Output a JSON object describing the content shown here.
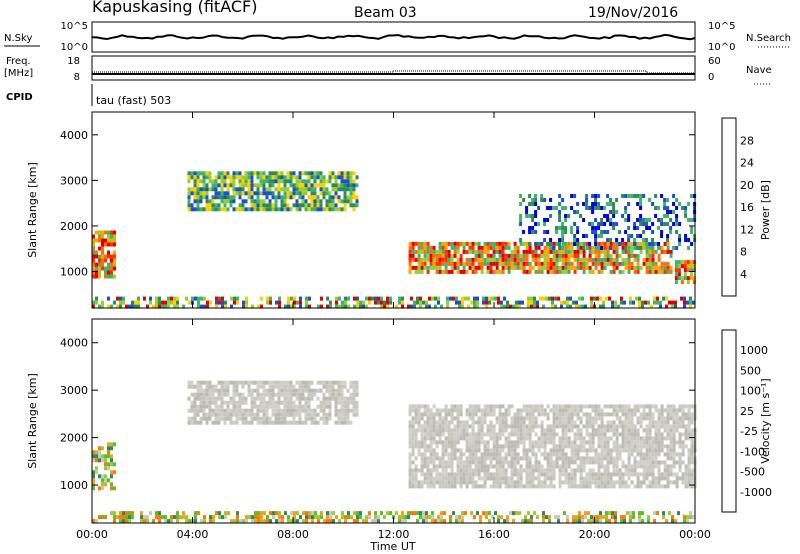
{
  "header": {
    "station": "Kapuskasing (fitACF)",
    "beam": "Beam 03",
    "date": "19/Nov/2016"
  },
  "top_panels": {
    "nsky_label": "N.Sky",
    "nsearch_label": "N.Search",
    "nsky_ticks": [
      "10^5",
      "10^0"
    ],
    "nsearch_ticks": [
      "10^5",
      "10^0"
    ],
    "freq_label_line1": "Freq.",
    "freq_label_line2": "[MHz]",
    "freq_ticks": [
      "18",
      "8"
    ],
    "nave_label": "Nave",
    "nave_ticks": [
      "60",
      "0"
    ],
    "cpid_label": "CPID",
    "cpid_text": "tau (fast) 503"
  },
  "chart_data": [
    {
      "type": "heatmap",
      "panel": "power",
      "ylabel": "Slant Range [km]",
      "xlabel": "",
      "ylim": [
        200,
        4500
      ],
      "yticks": [
        1000,
        2000,
        3000,
        4000
      ],
      "xlim": [
        0,
        24
      ],
      "colorbar_label": "Power [dB]",
      "colorbar_ticks": [
        "28",
        "24",
        "20",
        "16",
        "12",
        "8",
        "4"
      ],
      "colorbar_colors": [
        "#0000e0",
        "#1e50c8",
        "#2e8b57",
        "#3cb371",
        "#9acd32",
        "#ffd000",
        "#ffa500",
        "#ff7000",
        "#ff3000",
        "#e00000"
      ],
      "regions": [
        {
          "t_start": 0.0,
          "t_end": 0.9,
          "r_start": 900,
          "r_end": 1900,
          "level": "high"
        },
        {
          "t_start": 3.8,
          "t_end": 10.5,
          "r_start": 2350,
          "r_end": 3200,
          "level": "medium"
        },
        {
          "t_start": 12.6,
          "t_end": 23.1,
          "r_start": 950,
          "r_end": 1650,
          "level": "high"
        },
        {
          "t_start": 17.0,
          "t_end": 24.0,
          "r_start": 1500,
          "r_end": 2700,
          "level": "low"
        },
        {
          "t_start": 0.0,
          "t_end": 24.0,
          "r_start": 250,
          "r_end": 450,
          "level": "mixed"
        },
        {
          "t_start": 23.2,
          "t_end": 24.0,
          "r_start": 800,
          "r_end": 1250,
          "level": "high"
        }
      ]
    },
    {
      "type": "heatmap",
      "panel": "velocity",
      "ylabel": "Slant Range [km]",
      "xlabel": "Time UT",
      "ylim": [
        200,
        4500
      ],
      "yticks": [
        1000,
        2000,
        3000,
        4000
      ],
      "xlim": [
        0,
        24
      ],
      "xtick_labels": [
        "00:00",
        "04:00",
        "08:00",
        "12:00",
        "16:00",
        "20:00",
        "00:00"
      ],
      "colorbar_label": "Velocity [m s⁻¹]",
      "colorbar_ticks": [
        "1000",
        "500",
        "100",
        "25",
        "-25",
        "-100",
        "-500",
        "-1000"
      ],
      "colorbar_colors": [
        "#1e3ca0",
        "#2f60c8",
        "#2e8b57",
        "#55c030",
        "#c8c8c0",
        "#c8c8c0",
        "#f0a020",
        "#ff7800",
        "#ff3000",
        "#e00000"
      ],
      "regions": [
        {
          "t_start": 0.0,
          "t_end": 0.9,
          "r_start": 900,
          "r_end": 1900,
          "level": "mixed"
        },
        {
          "t_start": 3.8,
          "t_end": 10.5,
          "r_start": 2350,
          "r_end": 3200,
          "level": "ground"
        },
        {
          "t_start": 12.6,
          "t_end": 24.0,
          "r_start": 950,
          "r_end": 2700,
          "level": "ground"
        },
        {
          "t_start": 0.0,
          "t_end": 24.0,
          "r_start": 250,
          "r_end": 450,
          "level": "mixed"
        }
      ]
    }
  ],
  "colors": {
    "power_high": [
      "#e00000",
      "#ff3000",
      "#ff7000",
      "#ffa500",
      "#9acd32",
      "#3cb371"
    ],
    "power_medium": [
      "#2e8b57",
      "#3cb371",
      "#9acd32",
      "#1e50c8",
      "#ffd000"
    ],
    "power_low": [
      "#1e50c8",
      "#2e8b57",
      "#3cb371",
      "#0000e0"
    ],
    "power_mixed": [
      "#1e50c8",
      "#3cb371",
      "#9acd32",
      "#ffd000",
      "#e00000",
      "#2e8b57"
    ],
    "vel_ground": [
      "#c8c8c0",
      "#bcbcb4",
      "#d0d0c8"
    ],
    "vel_mixed": [
      "#c8c8c0",
      "#9acd32",
      "#f0a020",
      "#55c030",
      "#ff7800",
      "#2e8b57"
    ]
  }
}
